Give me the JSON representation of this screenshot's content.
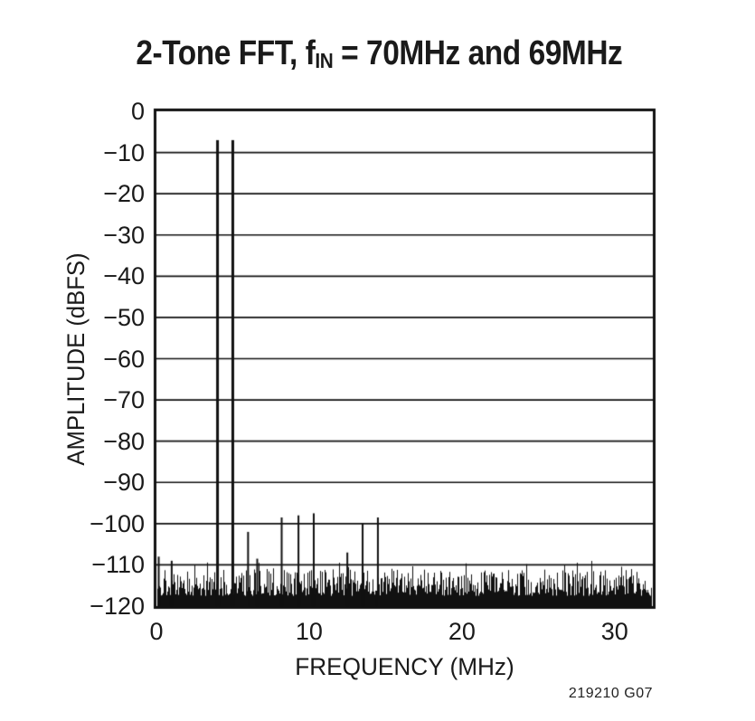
{
  "header": {
    "title_prefix": "2-Tone FFT, f",
    "title_sub": "IN",
    "title_suffix": " = 70MHz and 69MHz"
  },
  "chart_data": {
    "type": "line",
    "subtype": "fft-spectrum",
    "title": "2-Tone FFT, fIN = 70MHz and 69MHz",
    "xlabel": "FREQUENCY (MHz)",
    "ylabel": "AMPLITUDE (dBFS)",
    "xlim": [
      0,
      32.5
    ],
    "ylim": [
      -120,
      0
    ],
    "xticks": {
      "values": [
        0,
        10,
        20,
        30
      ],
      "labels": [
        "0",
        "10",
        "20",
        "30"
      ]
    },
    "yticks": {
      "values": [
        0,
        -10,
        -20,
        -30,
        -40,
        -50,
        -60,
        -70,
        -80,
        -90,
        -100,
        -110,
        -120
      ],
      "labels": [
        "0",
        "−10",
        "−20",
        "−30",
        "−40",
        "−50",
        "−60",
        "−70",
        "−80",
        "−90",
        "−100",
        "−110",
        "−120"
      ]
    },
    "grid": "horizontal-only",
    "legend": "none",
    "line_color": "#111111",
    "background_color": "#ffffff",
    "tones": [
      {
        "freq_mhz": 4.0,
        "amp_dbfs": -7
      },
      {
        "freq_mhz": 5.0,
        "amp_dbfs": -7
      }
    ],
    "spurs": [
      {
        "freq_mhz": 0.15,
        "amp_dbfs": -108
      },
      {
        "freq_mhz": 1.0,
        "amp_dbfs": -109
      },
      {
        "freq_mhz": 6.0,
        "amp_dbfs": -102
      },
      {
        "freq_mhz": 6.6,
        "amp_dbfs": -108.5
      },
      {
        "freq_mhz": 8.2,
        "amp_dbfs": -98.5
      },
      {
        "freq_mhz": 9.3,
        "amp_dbfs": -98
      },
      {
        "freq_mhz": 10.3,
        "amp_dbfs": -97.5
      },
      {
        "freq_mhz": 12.5,
        "amp_dbfs": -107
      },
      {
        "freq_mhz": 13.5,
        "amp_dbfs": -100
      },
      {
        "freq_mhz": 14.5,
        "amp_dbfs": -98.5
      }
    ],
    "noise_floor": {
      "base_dbfs": -120,
      "typical_top_dbfs": -115,
      "top_range_dbfs": [
        -117.5,
        -111
      ],
      "occasional_peak_dbfs": -109
    }
  },
  "footer": {
    "figure_id": "219210 G07"
  }
}
